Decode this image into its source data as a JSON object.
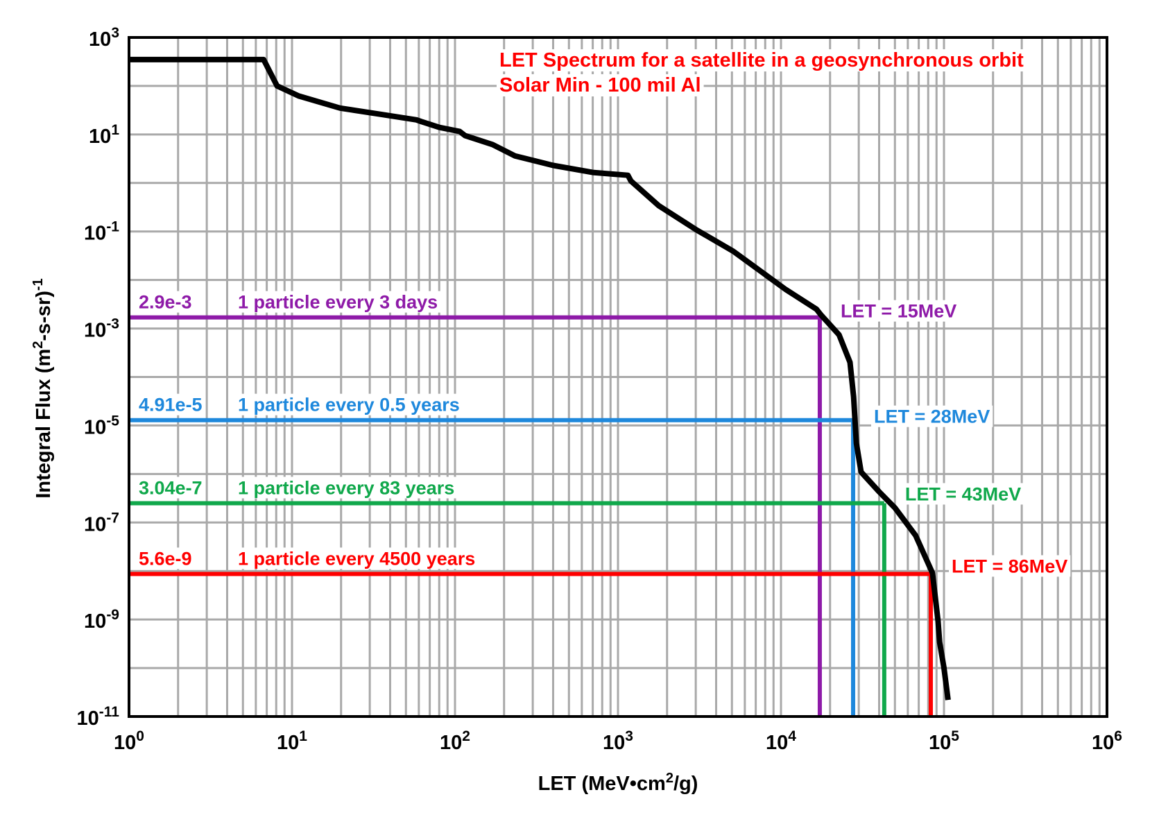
{
  "chart_data": {
    "type": "line",
    "title": [
      "LET Spectrum for a satellite in a geosynchronous orbit",
      "Solar Min - 100 mil Al"
    ],
    "title_color": "#ff0000",
    "xlabel": {
      "main": "LET (MeV•cm",
      "sup": "2",
      "tail": "/g)"
    },
    "ylabel": {
      "main": "Integral Flux (m",
      "sup": "2",
      "mid": "-s-sr)",
      "sup2": "-1"
    },
    "x_scale": "log",
    "y_scale": "log",
    "xlim": [
      1,
      1000000
    ],
    "ylim": [
      1e-11,
      1000
    ],
    "grid": true,
    "x_ticks": [
      {
        "base": "10",
        "exp": "0",
        "value": 1
      },
      {
        "base": "10",
        "exp": "1",
        "value": 10
      },
      {
        "base": "10",
        "exp": "2",
        "value": 100
      },
      {
        "base": "10",
        "exp": "3",
        "value": 1000
      },
      {
        "base": "10",
        "exp": "4",
        "value": 10000
      },
      {
        "base": "10",
        "exp": "5",
        "value": 100000
      },
      {
        "base": "10",
        "exp": "6",
        "value": 1000000
      }
    ],
    "y_ticks": [
      {
        "base": "10",
        "exp": "3",
        "value": 1000
      },
      {
        "base": "10",
        "exp": "1",
        "value": 10
      },
      {
        "base": "10",
        "exp": "-1",
        "value": 0.1
      },
      {
        "base": "10",
        "exp": "-3",
        "value": 0.001
      },
      {
        "base": "10",
        "exp": "-5",
        "value": 1e-05
      },
      {
        "base": "10",
        "exp": "-7",
        "value": 1e-07
      },
      {
        "base": "10",
        "exp": "-9",
        "value": 1e-09
      },
      {
        "base": "10",
        "exp": "-11",
        "value": 1e-11
      }
    ],
    "series": [
      {
        "name": "LET spectrum",
        "color": "#000000",
        "x": [
          0.99,
          6.7,
          8.1,
          11,
          19.7,
          35,
          58,
          62,
          80,
          107,
          115,
          170,
          234,
          400,
          700,
          1150,
          1200,
          1778,
          3000,
          5100,
          10600,
          16500,
          17600,
          22700,
          26500,
          27900,
          29000,
          31000,
          40000,
          50000,
          67000,
          85000,
          92000,
          94000,
          100000,
          106000
        ],
        "y": [
          350,
          350,
          100,
          62,
          35,
          26,
          20,
          18.5,
          14,
          11.5,
          9.5,
          6.2,
          3.6,
          2.3,
          1.65,
          1.44,
          1.1,
          0.34,
          0.11,
          0.039,
          0.0065,
          0.0025,
          0.0019,
          0.00074,
          0.0002,
          3.9e-05,
          4.3e-06,
          1.1e-06,
          4.3e-07,
          2e-07,
          5.4e-08,
          9.1e-09,
          9.1e-10,
          3.4e-10,
          1e-10,
          2.2e-11
        ]
      }
    ],
    "annotations": [
      {
        "flux_label": "2.9e-3",
        "text": "1 particle every 3 days",
        "let_label": "LET = 15MeV",
        "color": "#8e1aa8",
        "flux_drawn": 0.00169,
        "let_drawn": 17300
      },
      {
        "flux_label": "4.91e-5",
        "text": "1 particle every 0.5 years",
        "let_label": "LET = 28MeV",
        "color": "#1e88dc",
        "flux_drawn": 1.29e-05,
        "let_drawn": 27700
      },
      {
        "flux_label": "3.04e-7",
        "text": "1 particle every 83 years",
        "let_label": "LET = 43MeV",
        "color": "#10a84b",
        "flux_drawn": 2.5e-07,
        "let_drawn": 43000
      },
      {
        "flux_label": "5.6e-9",
        "text": "1 particle every 4500 years",
        "let_label": "LET = 86MeV",
        "color": "#ff0000",
        "flux_drawn": 8.7e-09,
        "let_drawn": 83000
      }
    ]
  }
}
